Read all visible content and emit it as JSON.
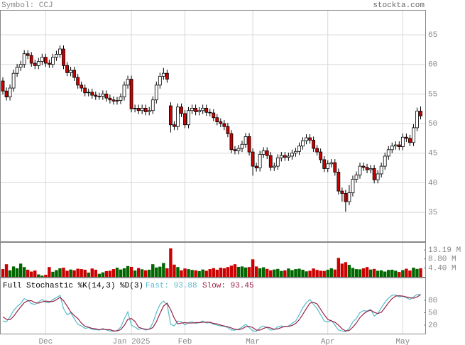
{
  "chart_data": [
    {
      "type": "candlestick",
      "title": "Symbol: CCJ",
      "source": "stockta.com",
      "categories": [
        null,
        null,
        null,
        null,
        null,
        null,
        null,
        null,
        null,
        null,
        null,
        null,
        "Dec",
        null,
        null,
        null,
        null,
        null,
        null,
        null,
        null,
        null,
        null,
        null,
        null,
        null,
        null,
        null,
        null,
        null,
        null,
        null,
        null,
        null,
        null,
        null,
        "Jan 2025",
        null,
        null,
        null,
        null,
        null,
        null,
        null,
        null,
        null,
        null,
        null,
        null,
        null,
        null,
        "Feb",
        null,
        null,
        null,
        null,
        null,
        null,
        null,
        null,
        null,
        null,
        null,
        null,
        null,
        null,
        null,
        null,
        null,
        null,
        "Mar",
        null,
        null,
        null,
        null,
        null,
        null,
        null,
        null,
        null,
        null,
        null,
        null,
        null,
        null,
        null,
        null,
        null,
        null,
        null,
        null,
        "Apr",
        null,
        null,
        null,
        null,
        null,
        null,
        null,
        null,
        null,
        null,
        null,
        null,
        null,
        null,
        null,
        null,
        null,
        null,
        null,
        null,
        "May",
        null,
        null,
        null,
        null,
        null
      ],
      "open": [
        57.2,
        55.5,
        54.5,
        56,
        58.5,
        59.5,
        60,
        61.8,
        61.5,
        60.2,
        59.8,
        60.5,
        61.2,
        60.2,
        60,
        61.2,
        61.7,
        62.6,
        59.8,
        58.6,
        59,
        57.8,
        56.5,
        56,
        55.2,
        55.3,
        54.8,
        54.6,
        54.6,
        55,
        54.3,
        54,
        53.8,
        53.9,
        54.5,
        56.5,
        57.5,
        52.5,
        52.6,
        52.2,
        52.6,
        52,
        52.2,
        54,
        56.5,
        58,
        58.5,
        53,
        49.8,
        49.5,
        52.8,
        51.7,
        49.8,
        52.2,
        52.6,
        52,
        52.2,
        52.6,
        51.9,
        51.8,
        51,
        50.3,
        50,
        49.5,
        48.3,
        45.6,
        45.4,
        45.8,
        46.5,
        47.8,
        45.2,
        42.8,
        42.5,
        44.8,
        45.4,
        44.6,
        42.6,
        42.8,
        44.2,
        44.6,
        44.3,
        44.5,
        45,
        45.3,
        46.2,
        47.1,
        47.6,
        47.2,
        45.8,
        45.2,
        43.9,
        42.4,
        43.2,
        43.4,
        41.8,
        38.6,
        38.2,
        36.8,
        38.3,
        40.6,
        41.3,
        42.8,
        42.6,
        42.2,
        42.4,
        40.5,
        41.5,
        42.8,
        44.5,
        45.6,
        46.2,
        46.4,
        46.1,
        47.7,
        47.5,
        46.8,
        49.3,
        52.1
      ],
      "high": [
        57.8,
        56.1,
        56.6,
        59.1,
        60.1,
        60.6,
        62.4,
        62.4,
        62.1,
        60.8,
        61.1,
        61.8,
        61.8,
        60.8,
        61.8,
        62.3,
        63.2,
        63.2,
        60.4,
        59.6,
        59.6,
        58.4,
        57.1,
        56.6,
        55.9,
        55.9,
        55.4,
        55.2,
        55.6,
        55.6,
        54.9,
        54.6,
        54.5,
        55.1,
        57.1,
        58.1,
        58.1,
        53.2,
        53.2,
        53.2,
        53.2,
        52.8,
        54.6,
        57.1,
        58.6,
        59.4,
        59.1,
        53.6,
        50.4,
        53.4,
        53.4,
        52.3,
        52.8,
        53.2,
        53.2,
        52.8,
        53.2,
        53.2,
        52.5,
        52.4,
        51.6,
        50.9,
        50.6,
        50.1,
        48.9,
        46.2,
        46.4,
        47.1,
        48.4,
        48.4,
        45.8,
        43.4,
        45.4,
        46,
        46,
        45.2,
        43.4,
        44.8,
        45.2,
        45.2,
        45.1,
        45.6,
        45.9,
        46.8,
        47.7,
        48.2,
        48.2,
        47.8,
        46.4,
        45.8,
        44.5,
        43.8,
        44,
        44,
        42.4,
        39.2,
        38.8,
        39.6,
        41.2,
        41.9,
        43.4,
        43.4,
        43.2,
        43,
        43,
        42.1,
        43.4,
        45.1,
        46.2,
        46.8,
        47,
        47,
        48.3,
        48.3,
        48.1,
        49.9,
        52.7,
        52.9
      ],
      "low": [
        54.9,
        53.9,
        53.9,
        55.4,
        57.9,
        58.9,
        59.4,
        60.9,
        59.6,
        59.2,
        59.2,
        59.9,
        59.6,
        59.4,
        59.4,
        60.6,
        61.1,
        59.2,
        58,
        58,
        57.2,
        55.9,
        55.4,
        54.6,
        54.6,
        54.2,
        54,
        54,
        54,
        53.7,
        53.4,
        53.2,
        53.2,
        53.3,
        53.9,
        55.9,
        51.9,
        51.9,
        51.6,
        51.6,
        51.4,
        51.4,
        51.6,
        53.4,
        55.9,
        57.4,
        56.9,
        48.5,
        48.9,
        48.9,
        51.1,
        49.2,
        49.2,
        51.6,
        51.4,
        51.4,
        51.6,
        51.3,
        51.2,
        50.4,
        49.7,
        49.4,
        48.9,
        47.7,
        45,
        44.8,
        44.8,
        45.2,
        45.9,
        44.6,
        41.2,
        41.9,
        41.9,
        44.2,
        44,
        42,
        42,
        42.2,
        43.6,
        43.7,
        43.7,
        43.9,
        44.4,
        44.7,
        45.6,
        46.5,
        46.6,
        45.2,
        44.6,
        43.3,
        41.8,
        41.8,
        42.6,
        41.2,
        38,
        36.8,
        35.1,
        36.2,
        37.7,
        40,
        40.7,
        42,
        41.6,
        41.6,
        39.9,
        39.9,
        40.9,
        42.2,
        43.9,
        45,
        45.6,
        45.5,
        45.5,
        46.9,
        46.2,
        46.2,
        48.7,
        50.7
      ],
      "close": [
        55.5,
        54.5,
        56,
        58.5,
        59.5,
        60,
        61.8,
        61.5,
        60.2,
        59.8,
        60.5,
        61.2,
        60.2,
        60,
        61.2,
        61.7,
        62.6,
        59.8,
        58.6,
        59,
        57.8,
        56.5,
        56,
        55.2,
        55.3,
        54.8,
        54.6,
        54.6,
        55,
        54.3,
        54,
        53.8,
        53.9,
        54.5,
        56.5,
        57.5,
        52.5,
        52.6,
        52.2,
        52.6,
        52,
        52.2,
        54,
        56.5,
        58,
        58.5,
        57.5,
        49.8,
        49.5,
        52.8,
        51.7,
        49.8,
        52.2,
        52.6,
        52,
        52.2,
        52.6,
        51.9,
        51.8,
        51,
        50.3,
        50,
        49.5,
        48.3,
        45.6,
        45.4,
        45.8,
        46.5,
        47.8,
        45.2,
        42.8,
        42.5,
        44.8,
        45.4,
        44.6,
        42.6,
        42.8,
        44.2,
        44.6,
        44.3,
        44.5,
        45,
        45.3,
        46.2,
        47.1,
        47.6,
        47.2,
        45.8,
        45.2,
        43.9,
        42.4,
        43.2,
        43.4,
        41.8,
        38.6,
        38.2,
        36.8,
        38.3,
        40.6,
        41.3,
        42.8,
        42.6,
        42.2,
        42.4,
        40.5,
        41.5,
        42.8,
        44.5,
        45.6,
        46.2,
        46.4,
        46.1,
        47.7,
        47.5,
        46.8,
        49.3,
        52.1,
        51.3
      ],
      "up_color": "#ffffff",
      "down_color": "#cc0000",
      "ylim": [
        30.1,
        69.2
      ],
      "yticks": [
        35,
        40,
        45,
        50,
        55,
        60,
        65
      ],
      "grid": true
    },
    {
      "type": "bar",
      "values": [
        3.8,
        6.2,
        3.2,
        5.1,
        4.2,
        6.5,
        4.8,
        3.5,
        2.6,
        3.1,
        1.2,
        0.6,
        1.0,
        4.8,
        2.5,
        3.3,
        4.2,
        4.5,
        3.0,
        3.6,
        3.2,
        4.0,
        3.8,
        3.5,
        2.1,
        4.1,
        3.5,
        1.5,
        2.2,
        2.8,
        3.0,
        3.8,
        4.5,
        3.6,
        4.2,
        5.3,
        4.9,
        3.1,
        4.3,
        3.7,
        3.2,
        3.5,
        6.2,
        4.6,
        5.0,
        6.8,
        4.2,
        14.0,
        6.0,
        4.8,
        3.2,
        4.1,
        3.8,
        3.4,
        3.2,
        2.8,
        3.6,
        3.0,
        3.8,
        4.3,
        3.5,
        4.5,
        4.2,
        4.8,
        5.5,
        6.2,
        4.9,
        5.1,
        4.6,
        4.8,
        8.6,
        5.1,
        4.2,
        4.7,
        3.9,
        3.2,
        3.6,
        3.9,
        2.9,
        3.2,
        4.1,
        3.3,
        3.8,
        4.0,
        3.5,
        2.7,
        3.0,
        4.1,
        3.4,
        3.0,
        2.9,
        3.5,
        4.2,
        3.6,
        9.3,
        6.5,
        7.2,
        5.9,
        4.4,
        3.8,
        3.7,
        4.2,
        4.8,
        3.6,
        3.9,
        3.0,
        3.2,
        2.6,
        3.4,
        3.5,
        3.0,
        2.4,
        3.3,
        4.0,
        3.1,
        4.5,
        3.9,
        4.2
      ],
      "up_color": "#006600",
      "down_color": "#cc0000",
      "ylim": [
        0,
        17.06
      ],
      "yticks": [
        {
          "value": 4.4,
          "label": "4.40 M"
        },
        {
          "value": 8.8,
          "label": "8.80 M"
        },
        {
          "value": 13.19,
          "label": "13.19 M"
        }
      ]
    },
    {
      "type": "line",
      "title": "Full Stochastic %K(14,3) %D(3)",
      "series": [
        {
          "name": "Fast: 93.88",
          "color": "#55bbcc",
          "values": [
            30,
            28,
            40,
            55,
            65,
            72,
            84,
            80,
            72,
            70,
            76,
            82,
            75,
            74,
            82,
            86,
            92,
            60,
            45,
            50,
            35,
            22,
            18,
            12,
            14,
            10,
            9,
            8,
            12,
            8,
            6,
            5,
            7,
            15,
            35,
            52,
            20,
            15,
            10,
            12,
            8,
            10,
            25,
            50,
            70,
            78,
            70,
            22,
            18,
            30,
            28,
            20,
            26,
            28,
            24,
            26,
            30,
            25,
            26,
            22,
            20,
            18,
            17,
            14,
            8,
            8,
            10,
            15,
            22,
            14,
            6,
            5,
            14,
            18,
            14,
            8,
            9,
            16,
            18,
            16,
            18,
            24,
            30,
            45,
            62,
            74,
            82,
            70,
            60,
            45,
            30,
            28,
            32,
            20,
            8,
            6,
            4,
            12,
            28,
            36,
            50,
            55,
            54,
            58,
            42,
            48,
            62,
            75,
            85,
            92,
            93,
            88,
            90,
            86,
            82,
            88,
            94,
            93.88
          ]
        },
        {
          "name": "Slow: 93.45",
          "color": "#992244",
          "values": [
            40,
            34,
            33,
            41,
            53,
            64,
            74,
            79,
            79,
            74,
            73,
            76,
            78,
            77,
            77,
            81,
            87,
            79,
            66,
            52,
            43,
            36,
            25,
            17,
            15,
            12,
            11,
            9,
            10,
            9,
            9,
            6,
            6,
            9,
            19,
            34,
            36,
            29,
            15,
            12,
            10,
            10,
            14,
            28,
            48,
            66,
            73,
            57,
            37,
            23,
            25,
            26,
            25,
            25,
            26,
            26,
            27,
            27,
            27,
            24,
            23,
            20,
            18,
            16,
            13,
            10,
            9,
            11,
            16,
            17,
            14,
            8,
            8,
            12,
            15,
            13,
            10,
            11,
            14,
            17,
            17,
            19,
            24,
            33,
            46,
            60,
            73,
            75,
            71,
            58,
            45,
            34,
            30,
            27,
            20,
            11,
            6,
            7,
            15,
            25,
            38,
            47,
            53,
            56,
            51,
            48,
            51,
            62,
            74,
            84,
            90,
            91,
            90,
            88,
            86,
            85,
            88,
            93.45
          ]
        }
      ],
      "ylim": [
        -0.6,
        134.8
      ],
      "yticks": [
        20,
        50,
        80
      ]
    }
  ]
}
